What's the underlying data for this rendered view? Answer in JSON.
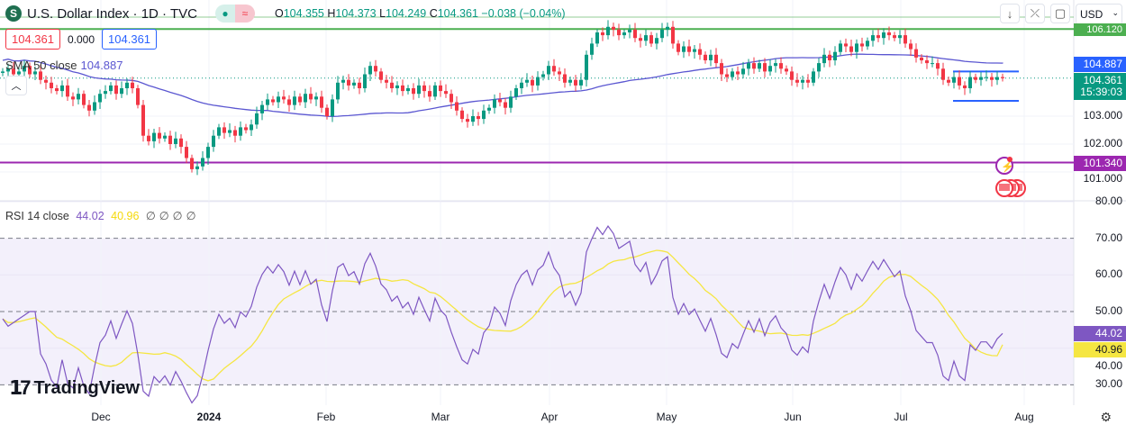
{
  "header": {
    "symbol_icon": "S",
    "title": "U.S. Dollar Index · 1D · TVC",
    "status_dot": "market-open-dot",
    "status_icon": "≈",
    "open_label": "O",
    "open": "104.355",
    "high_label": "H",
    "high": "104.373",
    "low_label": "L",
    "low": "104.249",
    "close_label": "C",
    "close": "104.361",
    "change": "−0.038 (−0.04%)"
  },
  "toolbar": {
    "buttons": [
      "↓",
      "⤫",
      "▢"
    ],
    "currency": "USD"
  },
  "quote": {
    "sell": "104.361",
    "spread": "0.000",
    "buy": "104.361"
  },
  "sma": {
    "label": "SMA 50 close",
    "value": "104.887"
  },
  "rsi": {
    "label": "RSI 14 close",
    "value": "44.02",
    "ma": "40.96",
    "extras": [
      "∅",
      "∅",
      "∅",
      "∅"
    ]
  },
  "brand": "TradingView",
  "price_labels": {
    "top_line": "106.120",
    "sma": "104.887",
    "last": "104.361",
    "countdown": "15:39:03",
    "support": "101.340",
    "rsi": "44.02",
    "rsi_ma": "40.96"
  },
  "colors": {
    "up": "#089981",
    "down": "#f23645",
    "sma": "#5b57d1",
    "rsi": "#7e57c2",
    "rsi_ma": "#f5e642",
    "resistance": "#4caf50",
    "support": "#9c27b0",
    "channel": "#2962ff"
  },
  "chart_data": {
    "type": "candlestick",
    "price_axis": {
      "ticks": [
        101,
        102,
        103
      ],
      "tick_labels": [
        "101.000",
        "102.000",
        "103.000"
      ],
      "range": [
        100.7,
        107.0
      ]
    },
    "rsi_axis": {
      "ticks": [
        30,
        40,
        50,
        60,
        70,
        80
      ],
      "tick_labels": [
        "30.00",
        "40.00",
        "50.00",
        "60.00",
        "70.00",
        "80.00"
      ],
      "bands": [
        30,
        50,
        70
      ]
    },
    "time_labels": [
      "Dec",
      "2024",
      "Feb",
      "Mar",
      "Apr",
      "May",
      "Jun",
      "Jul",
      "Aug"
    ],
    "horizontal_lines": [
      106.12,
      101.34
    ],
    "channel": [
      104.6,
      103.55
    ],
    "closes": [
      104.6,
      104.7,
      104.5,
      104.6,
      104.8,
      104.5,
      104.6,
      104.3,
      104.2,
      104.0,
      103.9,
      104.1,
      103.7,
      103.6,
      103.8,
      103.4,
      103.2,
      103.5,
      103.8,
      103.9,
      104.1,
      103.8,
      104.0,
      104.2,
      104.0,
      103.4,
      102.3,
      102.1,
      102.4,
      102.2,
      102.3,
      102.0,
      102.2,
      101.9,
      101.5,
      101.1,
      101.2,
      101.5,
      101.9,
      102.3,
      102.6,
      102.4,
      102.5,
      102.3,
      102.6,
      102.5,
      102.7,
      103.1,
      103.4,
      103.6,
      103.5,
      103.7,
      103.6,
      103.4,
      103.7,
      103.5,
      103.8,
      103.6,
      103.7,
      103.3,
      103.0,
      103.6,
      104.2,
      104.3,
      104.1,
      104.2,
      104.0,
      104.5,
      104.8,
      104.6,
      104.3,
      104.2,
      104.0,
      104.1,
      103.9,
      104.0,
      103.8,
      104.1,
      103.9,
      103.7,
      104.1,
      103.9,
      103.8,
      103.5,
      103.2,
      102.9,
      102.8,
      103.0,
      102.9,
      103.2,
      103.3,
      103.6,
      103.5,
      103.3,
      103.7,
      104.0,
      104.2,
      104.3,
      104.1,
      104.4,
      104.5,
      104.8,
      104.6,
      104.5,
      104.2,
      104.3,
      104.1,
      104.3,
      105.2,
      105.6,
      106.0,
      105.9,
      106.2,
      106.1,
      105.9,
      106.0,
      106.1,
      105.8,
      105.7,
      105.9,
      105.6,
      105.8,
      106.1,
      106.2,
      105.6,
      105.3,
      105.5,
      105.3,
      105.4,
      105.2,
      105.0,
      105.2,
      104.9,
      104.5,
      104.4,
      104.6,
      104.5,
      104.7,
      104.9,
      104.7,
      104.9,
      104.6,
      104.8,
      104.9,
      104.7,
      104.6,
      104.3,
      104.2,
      104.3,
      104.2,
      104.6,
      104.9,
      105.2,
      105.0,
      105.3,
      105.6,
      105.5,
      105.3,
      105.6,
      105.5,
      105.7,
      105.9,
      105.8,
      106.0,
      105.9,
      105.8,
      105.9,
      105.6,
      105.4,
      105.1,
      105.0,
      104.9,
      104.9,
      104.7,
      104.3,
      104.2,
      104.4,
      104.1,
      104.0,
      104.4,
      104.3,
      104.4,
      104.4,
      104.3,
      104.4,
      104.361
    ]
  }
}
